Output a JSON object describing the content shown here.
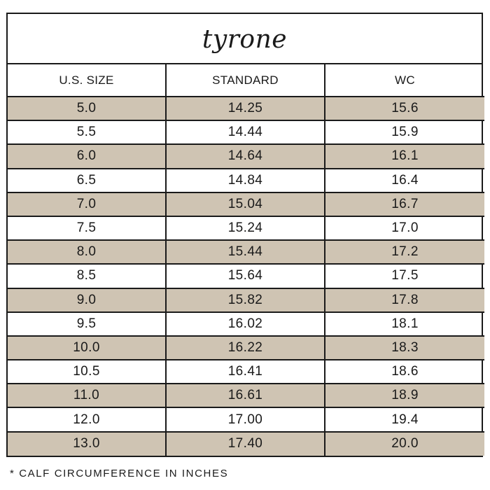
{
  "title": "tyrone",
  "colors": {
    "shaded_row": "#cfc4b3",
    "border": "#1a1a1a"
  },
  "headers": [
    "U.S. SIZE",
    "STANDARD",
    "WC"
  ],
  "rows": [
    [
      "5.0",
      "14.25",
      "15.6"
    ],
    [
      "5.5",
      "14.44",
      "15.9"
    ],
    [
      "6.0",
      "14.64",
      "16.1"
    ],
    [
      "6.5",
      "14.84",
      "16.4"
    ],
    [
      "7.0",
      "15.04",
      "16.7"
    ],
    [
      "7.5",
      "15.24",
      "17.0"
    ],
    [
      "8.0",
      "15.44",
      "17.2"
    ],
    [
      "8.5",
      "15.64",
      "17.5"
    ],
    [
      "9.0",
      "15.82",
      "17.8"
    ],
    [
      "9.5",
      "16.02",
      "18.1"
    ],
    [
      "10.0",
      "16.22",
      "18.3"
    ],
    [
      "10.5",
      "16.41",
      "18.6"
    ],
    [
      "11.0",
      "16.61",
      "18.9"
    ],
    [
      "12.0",
      "17.00",
      "19.4"
    ],
    [
      "13.0",
      "17.40",
      "20.0"
    ]
  ],
  "footnote": "* CALF CIRCUMFERENCE IN INCHES"
}
